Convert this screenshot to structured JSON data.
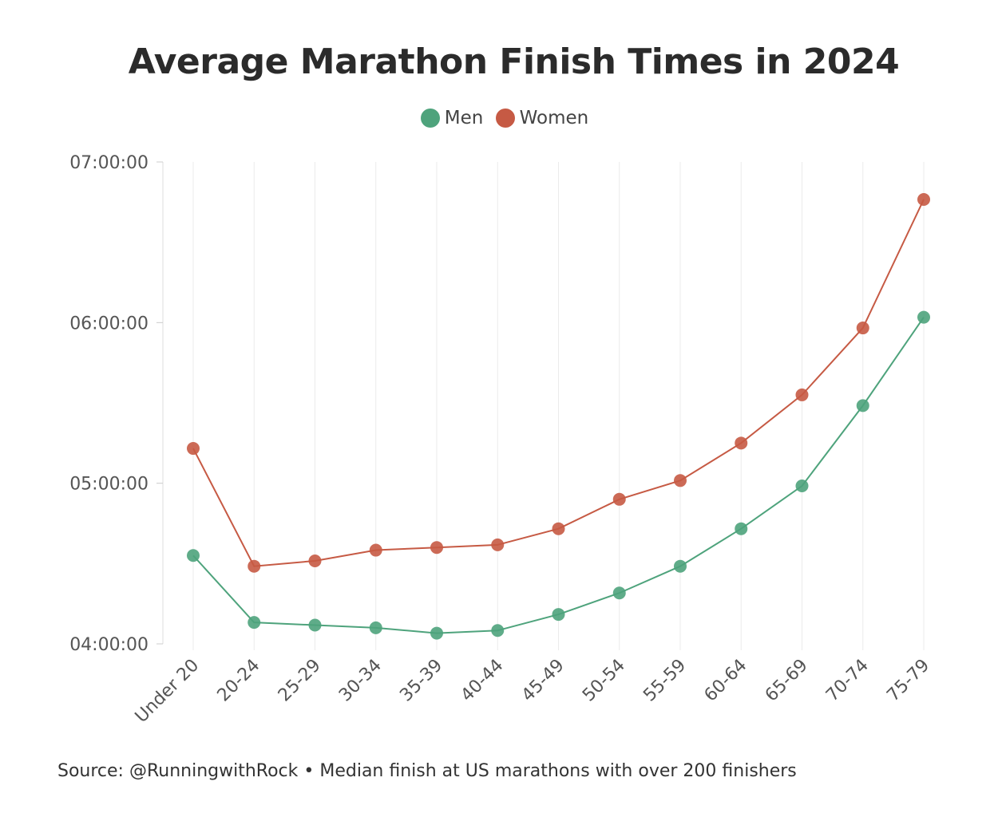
{
  "chart_data": {
    "type": "line",
    "title": "Average Marathon Finish Times in 2024",
    "categories": [
      "Under 20",
      "20-24",
      "25-29",
      "30-34",
      "35-39",
      "40-44",
      "45-49",
      "50-54",
      "55-59",
      "60-64",
      "65-69",
      "70-74",
      "75-79"
    ],
    "series": [
      {
        "name": "Men",
        "color": "#4ea37c",
        "values": [
          "04:33:00",
          "04:08:00",
          "04:07:00",
          "04:06:00",
          "04:04:00",
          "04:05:00",
          "04:11:00",
          "04:19:00",
          "04:29:00",
          "04:43:00",
          "04:59:00",
          "05:29:00",
          "06:02:00"
        ]
      },
      {
        "name": "Women",
        "color": "#c65a44",
        "values": [
          "05:13:00",
          "04:29:00",
          "04:31:00",
          "04:35:00",
          "04:36:00",
          "04:37:00",
          "04:43:00",
          "04:54:00",
          "05:01:00",
          "05:15:00",
          "05:33:00",
          "05:58:00",
          "06:46:00"
        ]
      }
    ],
    "y_ticks": [
      "04:00:00",
      "05:00:00",
      "06:00:00",
      "07:00:00"
    ],
    "ylim": [
      "04:00:00",
      "07:00:00"
    ],
    "xlabel": "",
    "ylabel": "",
    "grid": "vertical",
    "legend": "top-center"
  },
  "source": "Source: @RunningwithRock • Median finish at US marathons with over 200 finishers"
}
